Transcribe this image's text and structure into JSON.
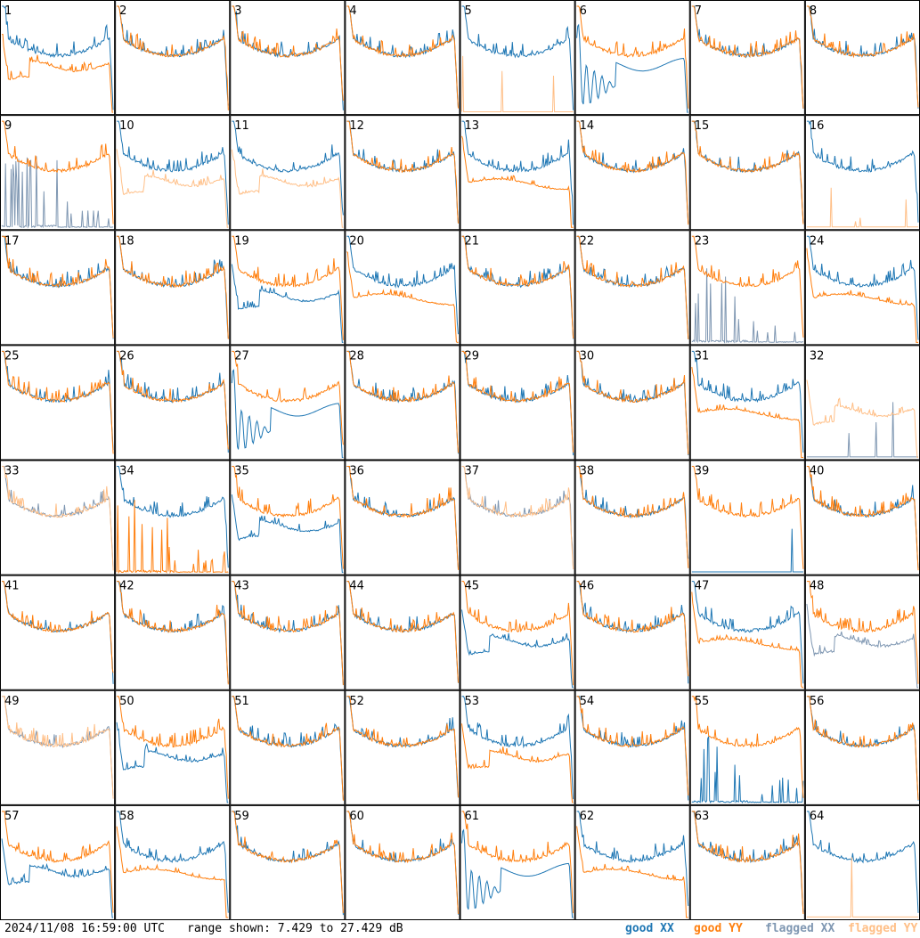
{
  "timestamp": "2024/11/08 16:59:00 UTC",
  "range_text": "range shown: 7.429 to 27.429 dB",
  "legend": {
    "good_xx": "good XX",
    "good_yy": "good YY",
    "flagged_xx": "flagged XX",
    "flagged_yy": "flagged YY"
  },
  "colors": {
    "good_xx": "#1f77b4",
    "good_yy": "#ff7f0e",
    "flagged_xx": "#7f97b2",
    "flagged_yy": "#ffbf87"
  },
  "chart_data": {
    "type": "line",
    "layout": "8x8 small multiples",
    "y_units": "dB",
    "ylim": [
      7.429,
      27.429
    ],
    "series_keys": [
      "good_xx",
      "good_yy",
      "flagged_xx",
      "flagged_yy"
    ],
    "panels": [
      {
        "label": "1",
        "xx": "good",
        "yy": "good",
        "xx_shape": "standard",
        "yy_shape": "dip"
      },
      {
        "label": "2",
        "xx": "good",
        "yy": "good",
        "xx_shape": "standard",
        "yy_shape": "standard"
      },
      {
        "label": "3",
        "xx": "good",
        "yy": "good",
        "xx_shape": "standard",
        "yy_shape": "standard"
      },
      {
        "label": "4",
        "xx": "good",
        "yy": "good",
        "xx_shape": "standard",
        "yy_shape": "standard"
      },
      {
        "label": "5",
        "xx": "good",
        "yy": "flagged",
        "xx_shape": "standard",
        "yy_shape": "floor"
      },
      {
        "label": "6",
        "xx": "good",
        "yy": "good",
        "xx_shape": "oscill",
        "yy_shape": "standard"
      },
      {
        "label": "7",
        "xx": "good",
        "yy": "good",
        "xx_shape": "standard",
        "yy_shape": "standard"
      },
      {
        "label": "8",
        "xx": "good",
        "yy": "good",
        "xx_shape": "standard",
        "yy_shape": "standard"
      },
      {
        "label": "9",
        "xx": "flagged",
        "yy": "good",
        "xx_shape": "spikes",
        "yy_shape": "standard"
      },
      {
        "label": "10",
        "xx": "good",
        "yy": "flagged",
        "xx_shape": "standard",
        "yy_shape": "dip"
      },
      {
        "label": "11",
        "xx": "good",
        "yy": "flagged",
        "xx_shape": "standard",
        "yy_shape": "dip"
      },
      {
        "label": "12",
        "xx": "good",
        "yy": "good",
        "xx_shape": "standard",
        "yy_shape": "standard"
      },
      {
        "label": "13",
        "xx": "good",
        "yy": "good",
        "xx_shape": "standard",
        "yy_shape": "low"
      },
      {
        "label": "14",
        "xx": "good",
        "yy": "good",
        "xx_shape": "standard",
        "yy_shape": "standard"
      },
      {
        "label": "15",
        "xx": "good",
        "yy": "good",
        "xx_shape": "standard",
        "yy_shape": "standard"
      },
      {
        "label": "16",
        "xx": "good",
        "yy": "flagged",
        "xx_shape": "standard",
        "yy_shape": "floor"
      },
      {
        "label": "17",
        "xx": "good",
        "yy": "good",
        "xx_shape": "standard",
        "yy_shape": "standard"
      },
      {
        "label": "18",
        "xx": "good",
        "yy": "good",
        "xx_shape": "standard",
        "yy_shape": "standard"
      },
      {
        "label": "19",
        "xx": "good",
        "yy": "good",
        "xx_shape": "dip",
        "yy_shape": "standard"
      },
      {
        "label": "20",
        "xx": "good",
        "yy": "good",
        "xx_shape": "standard",
        "yy_shape": "low"
      },
      {
        "label": "21",
        "xx": "good",
        "yy": "good",
        "xx_shape": "standard",
        "yy_shape": "standard"
      },
      {
        "label": "22",
        "xx": "good",
        "yy": "good",
        "xx_shape": "standard",
        "yy_shape": "standard"
      },
      {
        "label": "23",
        "xx": "flagged",
        "yy": "good",
        "xx_shape": "spikes",
        "yy_shape": "standard"
      },
      {
        "label": "24",
        "xx": "good",
        "yy": "good",
        "xx_shape": "standard",
        "yy_shape": "low"
      },
      {
        "label": "25",
        "xx": "good",
        "yy": "good",
        "xx_shape": "standard",
        "yy_shape": "standard"
      },
      {
        "label": "26",
        "xx": "good",
        "yy": "good",
        "xx_shape": "standard",
        "yy_shape": "standard"
      },
      {
        "label": "27",
        "xx": "good",
        "yy": "good",
        "xx_shape": "oscill",
        "yy_shape": "standard"
      },
      {
        "label": "28",
        "xx": "good",
        "yy": "good",
        "xx_shape": "standard",
        "yy_shape": "standard"
      },
      {
        "label": "29",
        "xx": "good",
        "yy": "good",
        "xx_shape": "standard",
        "yy_shape": "standard"
      },
      {
        "label": "30",
        "xx": "good",
        "yy": "good",
        "xx_shape": "standard",
        "yy_shape": "standard"
      },
      {
        "label": "31",
        "xx": "good",
        "yy": "good",
        "xx_shape": "standard",
        "yy_shape": "low"
      },
      {
        "label": "32",
        "xx": "flagged",
        "yy": "flagged",
        "xx_shape": "floor",
        "yy_shape": "dip"
      },
      {
        "label": "33",
        "xx": "flagged",
        "yy": "flagged",
        "xx_shape": "standard",
        "yy_shape": "standard"
      },
      {
        "label": "34",
        "xx": "good",
        "yy": "good",
        "xx_shape": "standard",
        "yy_shape": "spikes"
      },
      {
        "label": "35",
        "xx": "good",
        "yy": "good",
        "xx_shape": "dip",
        "yy_shape": "standard"
      },
      {
        "label": "36",
        "xx": "good",
        "yy": "good",
        "xx_shape": "standard",
        "yy_shape": "standard"
      },
      {
        "label": "37",
        "xx": "flagged",
        "yy": "flagged",
        "xx_shape": "standard",
        "yy_shape": "standard"
      },
      {
        "label": "38",
        "xx": "good",
        "yy": "good",
        "xx_shape": "standard",
        "yy_shape": "standard"
      },
      {
        "label": "39",
        "xx": "good",
        "yy": "good",
        "xx_shape": "floor",
        "yy_shape": "standard"
      },
      {
        "label": "40",
        "xx": "good",
        "yy": "good",
        "xx_shape": "standard",
        "yy_shape": "standard"
      },
      {
        "label": "41",
        "xx": "good",
        "yy": "good",
        "xx_shape": "standard",
        "yy_shape": "standard"
      },
      {
        "label": "42",
        "xx": "good",
        "yy": "good",
        "xx_shape": "standard",
        "yy_shape": "standard"
      },
      {
        "label": "43",
        "xx": "good",
        "yy": "good",
        "xx_shape": "standard",
        "yy_shape": "standard"
      },
      {
        "label": "44",
        "xx": "good",
        "yy": "good",
        "xx_shape": "standard",
        "yy_shape": "standard"
      },
      {
        "label": "45",
        "xx": "good",
        "yy": "good",
        "xx_shape": "dip",
        "yy_shape": "standard"
      },
      {
        "label": "46",
        "xx": "good",
        "yy": "good",
        "xx_shape": "standard",
        "yy_shape": "standard"
      },
      {
        "label": "47",
        "xx": "good",
        "yy": "good",
        "xx_shape": "standard",
        "yy_shape": "low"
      },
      {
        "label": "48",
        "xx": "flagged",
        "yy": "good",
        "xx_shape": "dip",
        "yy_shape": "standard"
      },
      {
        "label": "49",
        "xx": "flagged",
        "yy": "flagged",
        "xx_shape": "standard",
        "yy_shape": "standard"
      },
      {
        "label": "50",
        "xx": "good",
        "yy": "good",
        "xx_shape": "dip",
        "yy_shape": "standard"
      },
      {
        "label": "51",
        "xx": "good",
        "yy": "good",
        "xx_shape": "standard",
        "yy_shape": "standard"
      },
      {
        "label": "52",
        "xx": "good",
        "yy": "good",
        "xx_shape": "standard",
        "yy_shape": "standard"
      },
      {
        "label": "53",
        "xx": "good",
        "yy": "good",
        "xx_shape": "standard",
        "yy_shape": "dip"
      },
      {
        "label": "54",
        "xx": "good",
        "yy": "good",
        "xx_shape": "standard",
        "yy_shape": "standard"
      },
      {
        "label": "55",
        "xx": "good",
        "yy": "good",
        "xx_shape": "spikes",
        "yy_shape": "standard"
      },
      {
        "label": "56",
        "xx": "good",
        "yy": "good",
        "xx_shape": "standard",
        "yy_shape": "standard"
      },
      {
        "label": "57",
        "xx": "good",
        "yy": "good",
        "xx_shape": "dip",
        "yy_shape": "standard"
      },
      {
        "label": "58",
        "xx": "good",
        "yy": "good",
        "xx_shape": "standard",
        "yy_shape": "low"
      },
      {
        "label": "59",
        "xx": "good",
        "yy": "good",
        "xx_shape": "standard",
        "yy_shape": "standard"
      },
      {
        "label": "60",
        "xx": "good",
        "yy": "good",
        "xx_shape": "standard",
        "yy_shape": "standard"
      },
      {
        "label": "61",
        "xx": "good",
        "yy": "good",
        "xx_shape": "oscill",
        "yy_shape": "standard"
      },
      {
        "label": "62",
        "xx": "good",
        "yy": "good",
        "xx_shape": "standard",
        "yy_shape": "low"
      },
      {
        "label": "63",
        "xx": "good",
        "yy": "good",
        "xx_shape": "standard",
        "yy_shape": "standard"
      },
      {
        "label": "64",
        "xx": "good",
        "yy": "flagged",
        "xx_shape": "standard",
        "yy_shape": "floor"
      }
    ]
  }
}
